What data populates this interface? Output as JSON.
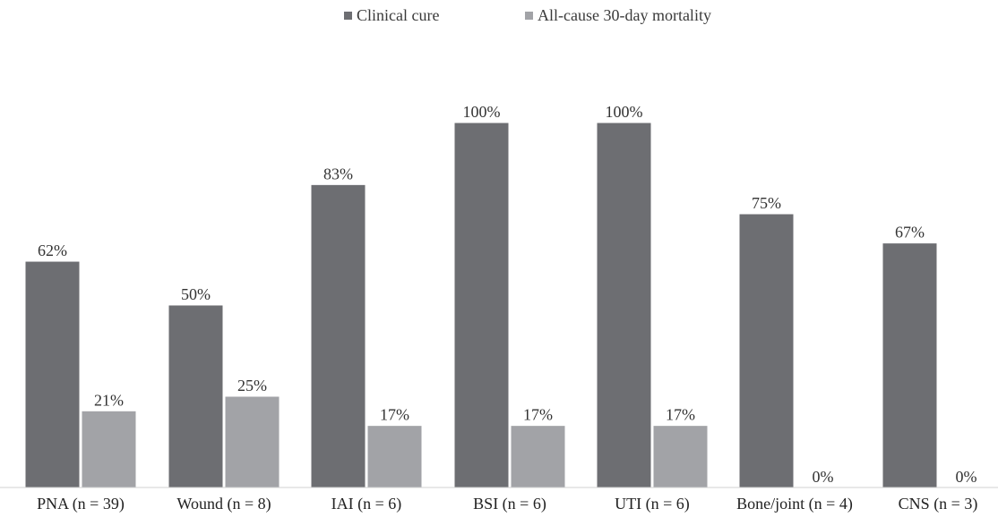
{
  "chart_data": {
    "type": "bar",
    "categories": [
      "PNA (n = 39)",
      "Wound (n = 8)",
      "IAI (n = 6)",
      "BSI (n = 6)",
      "UTI (n = 6)",
      "Bone/joint (n = 4)",
      "CNS (n = 3)"
    ],
    "series": [
      {
        "name": "Clinical cure",
        "color": "#6d6e72",
        "values": [
          62,
          50,
          83,
          100,
          100,
          75,
          67
        ],
        "labels": [
          "62%",
          "50%",
          "83%",
          "100%",
          "100%",
          "75%",
          "67%"
        ]
      },
      {
        "name": "All-cause 30-day mortality",
        "color": "#a2a3a7",
        "values": [
          21,
          25,
          17,
          17,
          17,
          0,
          0
        ],
        "labels": [
          "21%",
          "25%",
          "17%",
          "17%",
          "17%",
          "0%",
          "0%"
        ]
      }
    ],
    "ylim": [
      0,
      100
    ],
    "legend_position": "top-center",
    "grid": false
  }
}
